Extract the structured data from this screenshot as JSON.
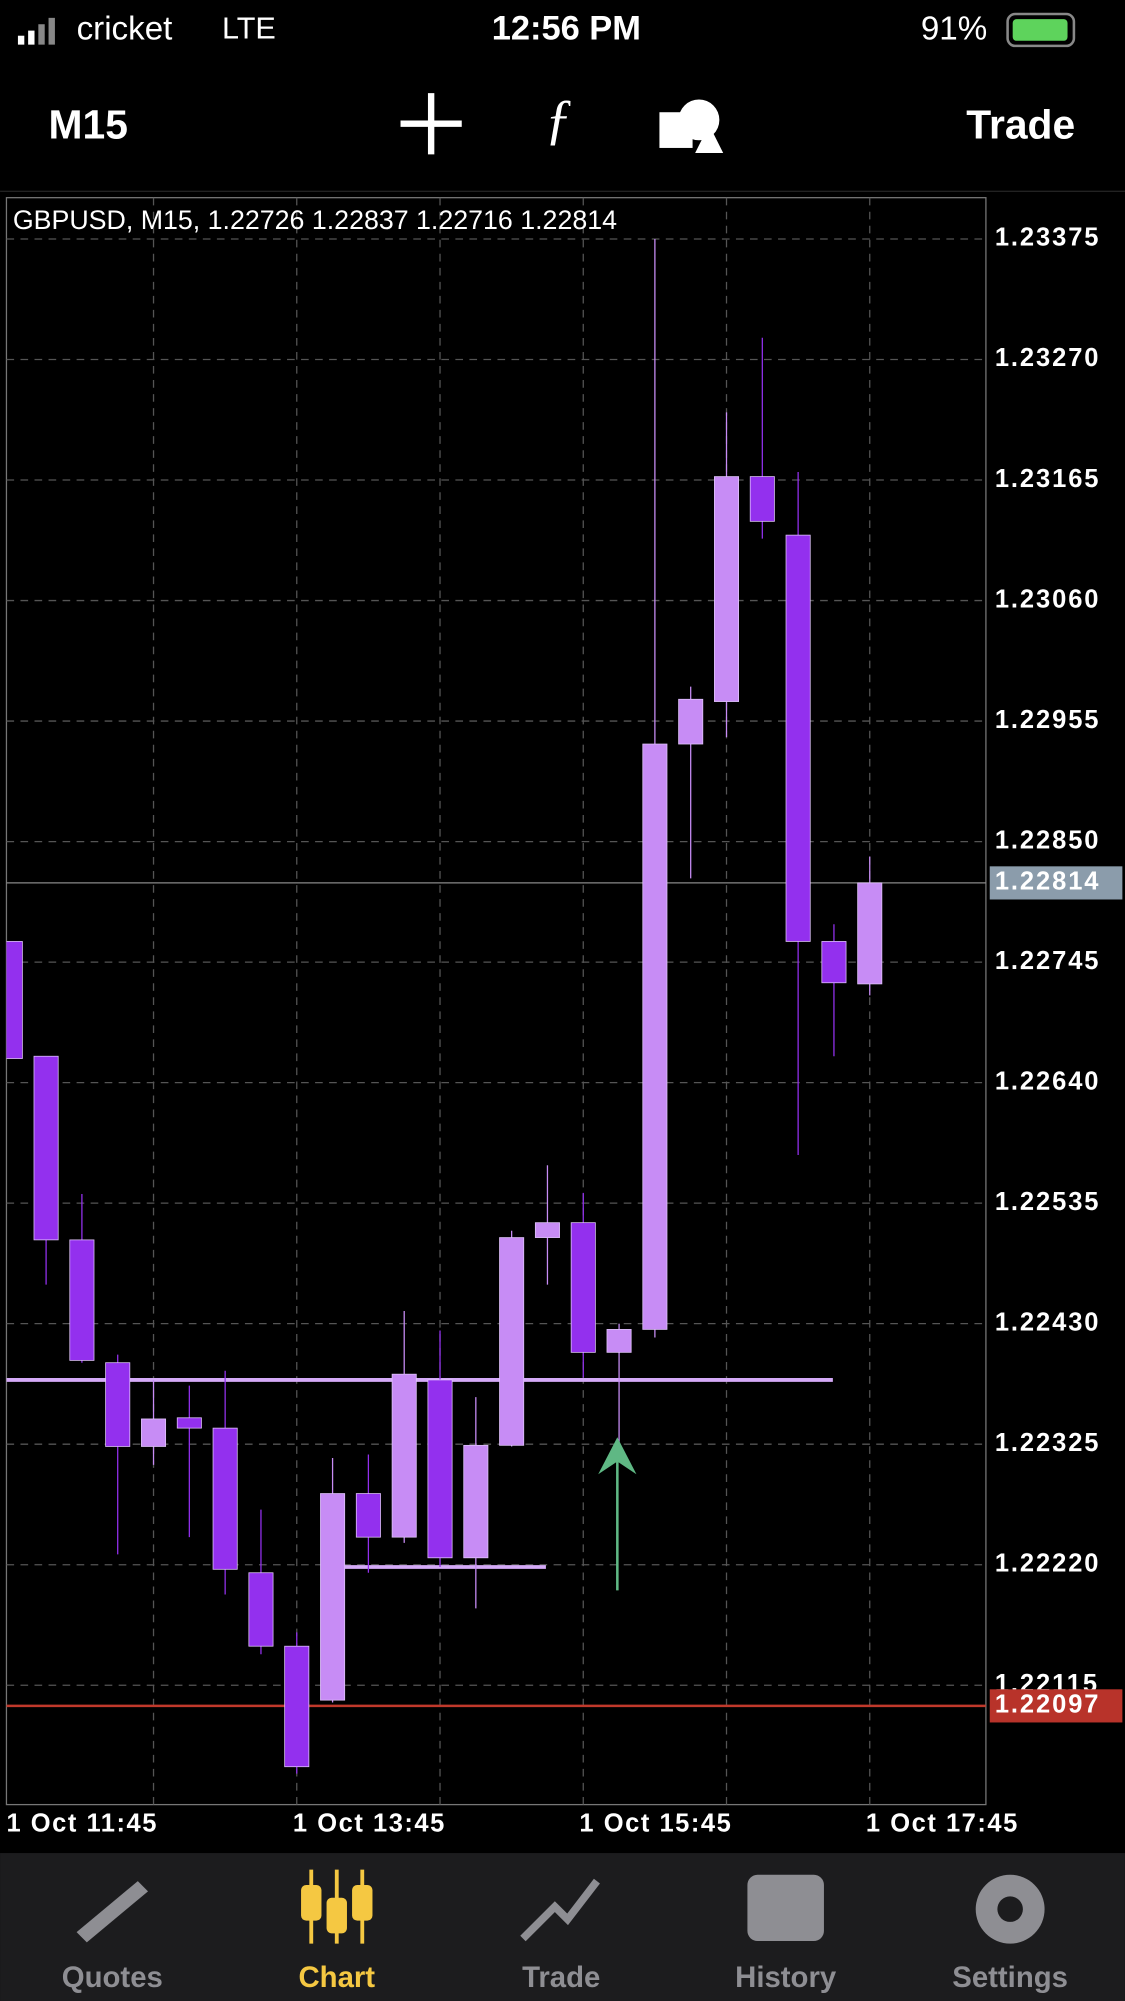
{
  "status_bar": {
    "carrier": "cricket",
    "network": "LTE",
    "time": "12:56 PM",
    "battery": "91%"
  },
  "toolbar": {
    "timeframe": "M15",
    "trade": "Trade"
  },
  "tabs": [
    "Quotes",
    "Chart",
    "Trade",
    "History",
    "Settings"
  ],
  "chart_data": {
    "type": "candlestick",
    "title": "GBPUSD, M15, 1.22726 1.22837 1.22716 1.22814",
    "categories": [
      "1 Oct 11:45",
      null,
      null,
      null,
      null,
      null,
      null,
      null,
      "1 Oct 13:45",
      null,
      null,
      null,
      null,
      null,
      null,
      null,
      "1 Oct 15:45",
      null,
      null,
      null,
      null,
      null,
      null,
      null,
      "1 Oct 17:45"
    ],
    "open": [
      1.22763,
      1.22663,
      1.22503,
      1.22396,
      1.22323,
      1.22348,
      1.22339,
      1.22213,
      1.22149,
      1.22102,
      1.22282,
      1.22244,
      1.22381,
      1.22226,
      1.22324,
      1.22505,
      1.22518,
      1.22405,
      1.22425,
      1.22935,
      1.22972,
      1.23168,
      1.23117,
      1.22763,
      1.22726
    ],
    "high": [
      1.22763,
      1.22663,
      1.22543,
      1.22403,
      1.22381,
      1.22376,
      1.22389,
      1.22268,
      1.22161,
      1.22313,
      1.22316,
      1.22441,
      1.22424,
      1.22366,
      1.22511,
      1.22568,
      1.22544,
      1.2243,
      1.23375,
      1.22985,
      1.23224,
      1.23289,
      1.23172,
      1.22778,
      1.22837
    ],
    "low": [
      1.22661,
      1.22464,
      1.22396,
      1.22229,
      1.22307,
      1.22244,
      1.22194,
      1.22142,
      1.22038,
      1.221,
      1.22213,
      1.22239,
      1.22218,
      1.22182,
      1.22323,
      1.22464,
      1.22383,
      1.22327,
      1.22418,
      1.22818,
      1.22941,
      1.23114,
      1.22577,
      1.22663,
      1.22716
    ],
    "close": [
      1.22661,
      1.22503,
      1.22398,
      1.22323,
      1.22347,
      1.22339,
      1.22216,
      1.22149,
      1.22044,
      1.22282,
      1.22244,
      1.22386,
      1.22226,
      1.22324,
      1.22505,
      1.22518,
      1.22405,
      1.22425,
      1.22935,
      1.22974,
      1.23168,
      1.23129,
      1.22763,
      1.22727,
      1.22814
    ],
    "up_color": "#c78cf5",
    "down_color": "#9330ee",
    "ylim": [
      1.22011,
      1.23411
    ],
    "yticks": [
      {
        "value": 1.23375,
        "label": "1.23375"
      },
      {
        "value": 1.2327,
        "label": "1.23270"
      },
      {
        "value": 1.23165,
        "label": "1.23165"
      },
      {
        "value": 1.2306,
        "label": "1.23060"
      },
      {
        "value": 1.22955,
        "label": "1.22955"
      },
      {
        "value": 1.2285,
        "label": "1.22850"
      },
      {
        "value": 1.22745,
        "label": "1.22745"
      },
      {
        "value": 1.2264,
        "label": "1.22640"
      },
      {
        "value": 1.22535,
        "label": "1.22535"
      },
      {
        "value": 1.2243,
        "label": "1.22430"
      },
      {
        "value": 1.22325,
        "label": "1.22325"
      },
      {
        "value": 1.2222,
        "label": "1.22220"
      },
      {
        "value": 1.22115,
        "label": "1.22115"
      }
    ],
    "grid": true,
    "current_price": 1.22814,
    "alert_level": 1.22097,
    "hlines": [
      1.22381,
      1.22218
    ]
  }
}
